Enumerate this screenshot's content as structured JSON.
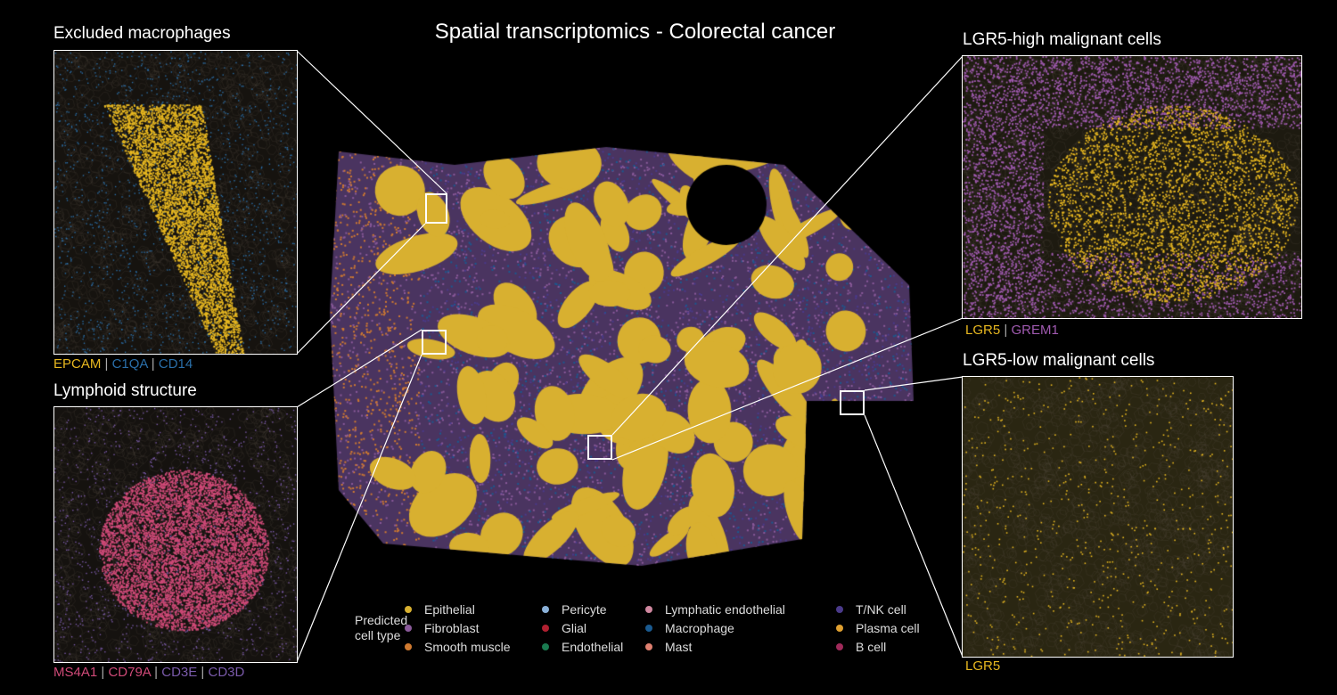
{
  "title": "Spatial transcriptomics - Colorectal cancer",
  "panels": {
    "top_left": {
      "title": "Excluded macrophages",
      "markers": [
        {
          "name": "EPCAM",
          "color": "#e8b820"
        },
        {
          "name": "C1QA",
          "color": "#2a6ea8"
        },
        {
          "name": "CD14",
          "color": "#2a6ea8"
        }
      ]
    },
    "bottom_left": {
      "title": "Lymphoid structure",
      "markers": [
        {
          "name": "MS4A1",
          "color": "#d04a78"
        },
        {
          "name": "CD79A",
          "color": "#d04a78"
        },
        {
          "name": "CD3E",
          "color": "#7a5aaa"
        },
        {
          "name": "CD3D",
          "color": "#7a5aaa"
        }
      ]
    },
    "top_right": {
      "title": "LGR5-high malignant cells",
      "markers": [
        {
          "name": "LGR5",
          "color": "#e8b820"
        },
        {
          "name": "GREM1",
          "color": "#a05ab0"
        }
      ]
    },
    "bottom_right": {
      "title": "LGR5-low malignant cells",
      "markers": [
        {
          "name": "LGR5",
          "color": "#e8b820"
        }
      ]
    }
  },
  "legend": {
    "title": "Predicted cell type",
    "items": [
      {
        "label": "Epithelial",
        "color": "#d8b030"
      },
      {
        "label": "Fibroblast",
        "color": "#8a5a9a"
      },
      {
        "label": "Smooth muscle",
        "color": "#d07a30"
      },
      {
        "label": "Pericyte",
        "color": "#8ab0d8"
      },
      {
        "label": "Glial",
        "color": "#b02030"
      },
      {
        "label": "Endothelial",
        "color": "#1a7a50"
      },
      {
        "label": "Lymphatic endothelial",
        "color": "#d088a0"
      },
      {
        "label": "Macrophage",
        "color": "#1a5a90"
      },
      {
        "label": "Mast",
        "color": "#e08070"
      },
      {
        "label": "T/NK cell",
        "color": "#4a3a8a"
      },
      {
        "label": "Plasma cell",
        "color": "#e0a030"
      },
      {
        "label": "B cell",
        "color": "#a02a5a"
      }
    ]
  }
}
